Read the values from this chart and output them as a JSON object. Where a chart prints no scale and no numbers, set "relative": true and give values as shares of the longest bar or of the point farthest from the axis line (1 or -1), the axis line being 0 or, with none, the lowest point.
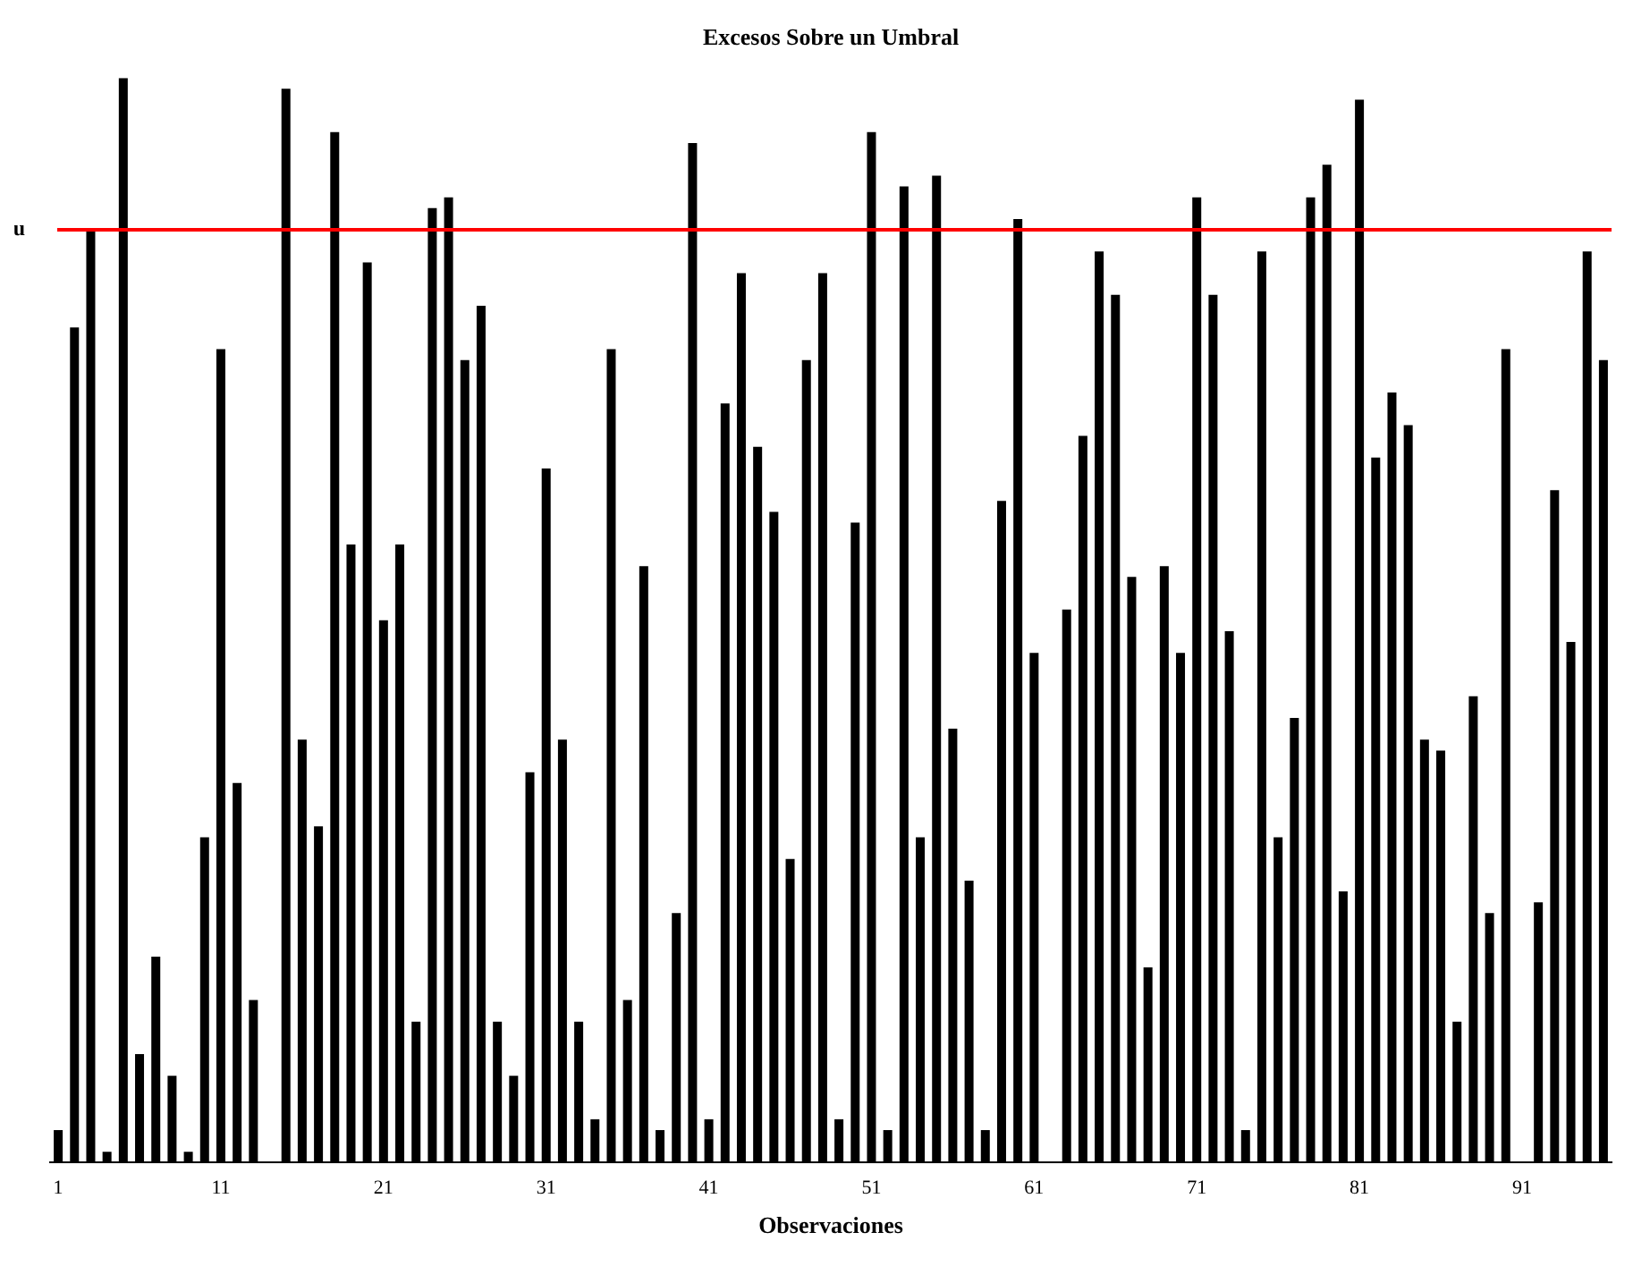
{
  "chart_data": {
    "type": "bar",
    "title": "Excesos Sobre un Umbral",
    "xlabel": "Observaciones",
    "relative": true,
    "color": "#000000",
    "grid": false,
    "categories": [
      "1",
      null,
      null,
      null,
      null,
      null,
      null,
      null,
      null,
      null,
      "11",
      null,
      null,
      null,
      null,
      null,
      null,
      null,
      null,
      null,
      "21",
      null,
      null,
      null,
      null,
      null,
      null,
      null,
      null,
      null,
      "31",
      null,
      null,
      null,
      null,
      null,
      null,
      null,
      null,
      null,
      "41",
      null,
      null,
      null,
      null,
      null,
      null,
      null,
      null,
      null,
      "51",
      null,
      null,
      null,
      null,
      null,
      null,
      null,
      null,
      null,
      "61",
      null,
      null,
      null,
      null,
      null,
      null,
      null,
      null,
      null,
      "71",
      null,
      null,
      null,
      null,
      null,
      null,
      null,
      null,
      null,
      "81",
      null,
      null,
      null,
      null,
      null,
      null,
      null,
      null,
      null,
      "91",
      null,
      null,
      null,
      null,
      null
    ],
    "values": [
      0.03,
      0.77,
      0.86,
      0.01,
      1,
      0.1,
      0.19,
      0.08,
      0.01,
      0.3,
      0.75,
      0.35,
      0.15,
      0,
      0.99,
      0.39,
      0.31,
      0.95,
      0.57,
      0.83,
      0.5,
      0.57,
      0.13,
      0.88,
      0.89,
      0.74,
      0.79,
      0.13,
      0.08,
      0.36,
      0.64,
      0.39,
      0.13,
      0.04,
      0.75,
      0.15,
      0.55,
      0.03,
      0.23,
      0.94,
      0.04,
      0.7,
      0.82,
      0.66,
      0.6,
      0.28,
      0.74,
      0.82,
      0.04,
      0.59,
      0.95,
      0.03,
      0.9,
      0.3,
      0.91,
      0.4,
      0.26,
      0.03,
      0.61,
      0.87,
      0.47,
      0,
      0.51,
      0.67,
      0.84,
      0.8,
      0.54,
      0.18,
      0.55,
      0.47,
      0.89,
      0.8,
      0.49,
      0.03,
      0.84,
      0.3,
      0.41,
      0.89,
      0.92,
      0.25,
      0.98,
      0.65,
      0.71,
      0.68,
      0.39,
      0.38,
      0.13,
      0.43,
      0.23,
      0.75,
      0,
      0.24,
      0.62,
      0.48,
      0.84,
      0.74
    ],
    "ref_lines": [
      {
        "axis": "y",
        "value": 0.86,
        "label": "u",
        "color": "#ff0000"
      }
    ]
  }
}
